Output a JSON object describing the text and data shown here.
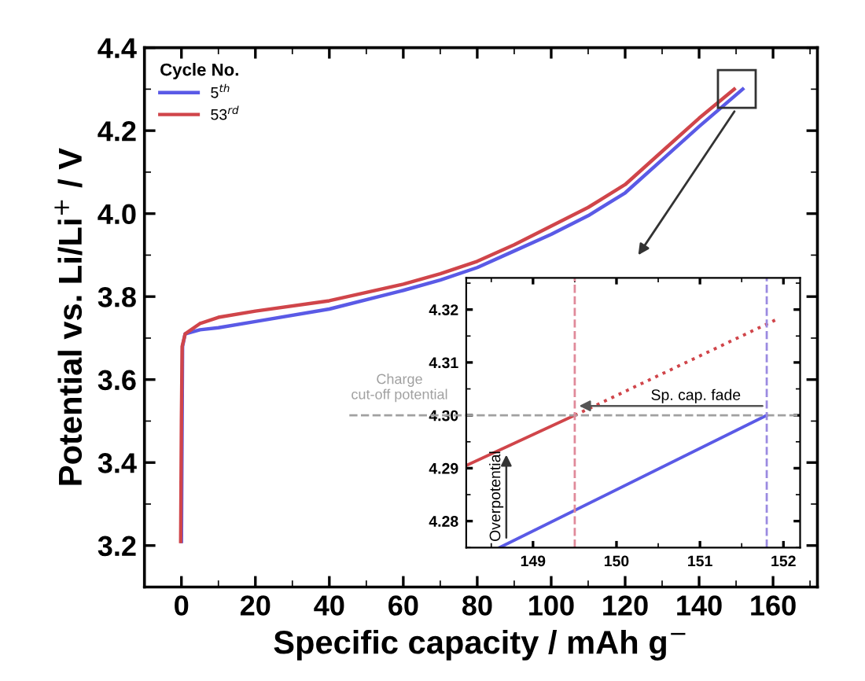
{
  "chart_data": [
    {
      "type": "line",
      "xlabel": "Specific capacity / mAh g$^{−}$",
      "ylabel": "Potential vs. Li/Li$^{+}$ / V",
      "legend_title": "Cycle No.",
      "legend": "top left",
      "xlim": [
        -10,
        172
      ],
      "ylim": [
        3.1,
        4.4
      ],
      "xticks": [
        0,
        20,
        40,
        60,
        80,
        100,
        120,
        140,
        160
      ],
      "yticks": [
        {
          "value": 3.2,
          "label": "3.2"
        },
        {
          "value": 3.4,
          "label": "3.4"
        },
        {
          "value": 3.6,
          "label": "3.6"
        },
        {
          "value": 3.8,
          "label": "3.8"
        },
        {
          "value": 4.0,
          "label": "4.0"
        },
        {
          "value": 4.2,
          "label": "4.2"
        },
        {
          "value": 4.4,
          "label": "4.4"
        }
      ],
      "line_style": "solid",
      "marker": "none",
      "series": [
        {
          "name": "5$^{th}$",
          "color": "#5a5ae6",
          "x": [
            0,
            0.3,
            1,
            5,
            10,
            20,
            40,
            60,
            70,
            80,
            90,
            100,
            110,
            120,
            130,
            140,
            151.8
          ],
          "values": [
            3.21,
            3.68,
            3.71,
            3.72,
            3.725,
            3.74,
            3.77,
            3.815,
            3.84,
            3.87,
            3.91,
            3.95,
            3.995,
            4.05,
            4.13,
            4.21,
            4.3
          ]
        },
        {
          "name": "53$^{rd}$",
          "color": "#d0454a",
          "x": [
            -0.2,
            0,
            0.2,
            1,
            5,
            10,
            20,
            40,
            60,
            70,
            80,
            90,
            100,
            110,
            120,
            130,
            140,
            149.5
          ],
          "values": [
            3.21,
            3.5,
            3.68,
            3.71,
            3.735,
            3.75,
            3.765,
            3.79,
            3.83,
            3.855,
            3.885,
            3.925,
            3.97,
            4.015,
            4.07,
            4.15,
            4.23,
            4.3
          ]
        }
      ]
    },
    {
      "type": "line",
      "xlim": [
        148.2,
        152.2
      ],
      "ylim": [
        4.275,
        4.326
      ],
      "xticks": [
        149,
        150,
        151,
        152
      ],
      "yticks": [
        4.28,
        4.29,
        {
          "value": 4.3,
          "label": "4.30"
        },
        4.31,
        4.32
      ],
      "series": [
        {
          "color": "#d0454a",
          "x": [
            148.2,
            149.5
          ],
          "values": [
            4.2905,
            4.3
          ],
          "line_style": "solid"
        },
        {
          "color": "#d0454a",
          "x": [
            149.5,
            151.9
          ],
          "values": [
            4.3,
            4.318
          ],
          "line_style": "dotted"
        },
        {
          "color": "#5a5ae6",
          "x": [
            148.6,
            151.8
          ],
          "values": [
            4.275,
            4.3
          ],
          "line_style": "solid"
        }
      ],
      "ref_lines": [
        {
          "axis": "y",
          "value": 4.3,
          "label": "Charge\ncut-off potential",
          "color": "#a0a0a0",
          "line_style": "dashed"
        },
        {
          "axis": "x",
          "value": 149.5,
          "color": "#e08a9a",
          "line_style": "dashed"
        },
        {
          "axis": "x",
          "value": 151.8,
          "color": "#9a8ae0",
          "line_style": "dashed"
        }
      ],
      "annotations": [
        "Sp. cap. fade",
        "Overpotential"
      ]
    }
  ]
}
